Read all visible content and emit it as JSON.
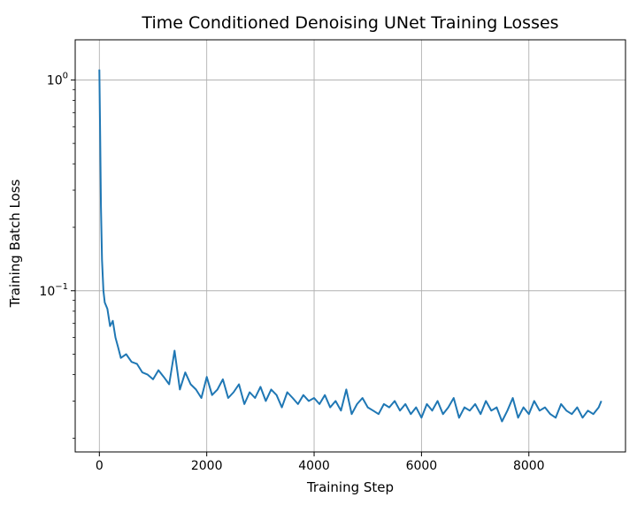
{
  "chart_data": {
    "type": "line",
    "title": "Time Conditioned Denoising UNet Training Losses",
    "xlabel": "Training Step",
    "ylabel": "Training Batch Loss",
    "xlim": [
      -450,
      9800
    ],
    "ylim": [
      0.0172,
      1.55
    ],
    "yscale": "log",
    "grid": true,
    "line_color": "#1f77b4",
    "x_ticks": [
      {
        "value": 0,
        "label": "0"
      },
      {
        "value": 2000,
        "label": "2000"
      },
      {
        "value": 4000,
        "label": "4000"
      },
      {
        "value": 6000,
        "label": "6000"
      },
      {
        "value": 8000,
        "label": "8000"
      }
    ],
    "y_major_ticks": [
      {
        "value": 0.1,
        "base": "10",
        "exp": "−1"
      },
      {
        "value": 1,
        "base": "10",
        "exp": "0"
      }
    ],
    "y_minor_ticks": [
      0.02,
      0.03,
      0.04,
      0.05,
      0.06,
      0.07,
      0.08,
      0.09,
      0.2,
      0.3,
      0.4,
      0.5,
      0.6,
      0.7,
      0.8,
      0.9
    ],
    "series": [
      {
        "x": [
          0,
          15,
          30,
          50,
          75,
          100,
          150,
          200,
          250,
          300,
          350,
          400,
          500,
          600,
          700,
          800,
          900,
          1000,
          1100,
          1200,
          1300,
          1400,
          1500,
          1600,
          1700,
          1800,
          1900,
          2000,
          2100,
          2200,
          2300,
          2400,
          2500,
          2600,
          2700,
          2800,
          2900,
          3000,
          3100,
          3200,
          3300,
          3400,
          3500,
          3600,
          3700,
          3800,
          3900,
          4000,
          4100,
          4200,
          4300,
          4400,
          4500,
          4600,
          4700,
          4800,
          4900,
          5000,
          5100,
          5200,
          5300,
          5400,
          5500,
          5600,
          5700,
          5800,
          5900,
          6000,
          6100,
          6200,
          6300,
          6400,
          6500,
          6600,
          6700,
          6800,
          6900,
          7000,
          7100,
          7200,
          7300,
          7400,
          7500,
          7600,
          7700,
          7800,
          7900,
          8000,
          8100,
          8200,
          8300,
          8400,
          8500,
          8600,
          8700,
          8800,
          8900,
          9000,
          9100,
          9200,
          9300,
          9350
        ],
        "y": [
          1.12,
          0.55,
          0.25,
          0.14,
          0.1,
          0.088,
          0.082,
          0.068,
          0.072,
          0.06,
          0.054,
          0.048,
          0.05,
          0.046,
          0.045,
          0.041,
          0.04,
          0.038,
          0.042,
          0.039,
          0.036,
          0.052,
          0.034,
          0.041,
          0.036,
          0.034,
          0.031,
          0.039,
          0.032,
          0.034,
          0.038,
          0.031,
          0.033,
          0.036,
          0.029,
          0.033,
          0.031,
          0.035,
          0.03,
          0.034,
          0.032,
          0.028,
          0.033,
          0.031,
          0.029,
          0.032,
          0.03,
          0.031,
          0.029,
          0.032,
          0.028,
          0.03,
          0.027,
          0.034,
          0.026,
          0.029,
          0.031,
          0.028,
          0.027,
          0.026,
          0.029,
          0.028,
          0.03,
          0.027,
          0.029,
          0.026,
          0.028,
          0.025,
          0.029,
          0.027,
          0.03,
          0.026,
          0.028,
          0.031,
          0.025,
          0.028,
          0.027,
          0.029,
          0.026,
          0.03,
          0.027,
          0.028,
          0.024,
          0.027,
          0.031,
          0.025,
          0.028,
          0.026,
          0.03,
          0.027,
          0.028,
          0.026,
          0.025,
          0.029,
          0.027,
          0.026,
          0.028,
          0.025,
          0.027,
          0.026,
          0.028,
          0.03
        ]
      }
    ]
  }
}
